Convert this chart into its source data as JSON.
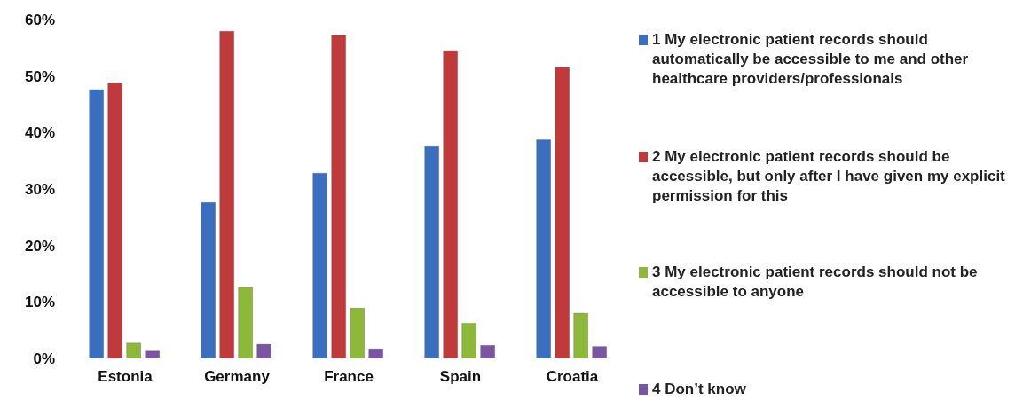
{
  "chart_data": {
    "type": "bar",
    "categories": [
      "Estonia",
      "Germany",
      "France",
      "Spain",
      "Croatia"
    ],
    "series": [
      {
        "name": "1 My electronic patient records should automatically be accessible to me and other healthcare providers/professionals",
        "color": "#3a6fc0",
        "values": [
          47.6,
          27.6,
          32.8,
          37.5,
          38.7
        ]
      },
      {
        "name": "2 My electronic patient records should be accessible, but only after I have given my explicit permission for this",
        "color": "#c0393b",
        "values": [
          48.8,
          57.9,
          57.2,
          54.5,
          51.6
        ]
      },
      {
        "name": "3 My electronic patient records should not be accessible to anyone",
        "color": "#8db83a",
        "values": [
          2.7,
          12.6,
          8.9,
          6.2,
          8.0
        ]
      },
      {
        "name": "4 Don’t know",
        "color": "#7a55a3",
        "values": [
          1.3,
          2.5,
          1.7,
          2.3,
          2.1
        ]
      }
    ],
    "ylim": [
      0,
      60
    ],
    "yticks": [
      {
        "value": 0,
        "label": "0%"
      },
      {
        "value": 10,
        "label": "10%"
      },
      {
        "value": 20,
        "label": "20%"
      },
      {
        "value": 30,
        "label": "30%"
      },
      {
        "value": 40,
        "label": "40%"
      },
      {
        "value": 50,
        "label": "50%"
      },
      {
        "value": 60,
        "label": "60%"
      }
    ],
    "grid": false,
    "legend": "right"
  }
}
